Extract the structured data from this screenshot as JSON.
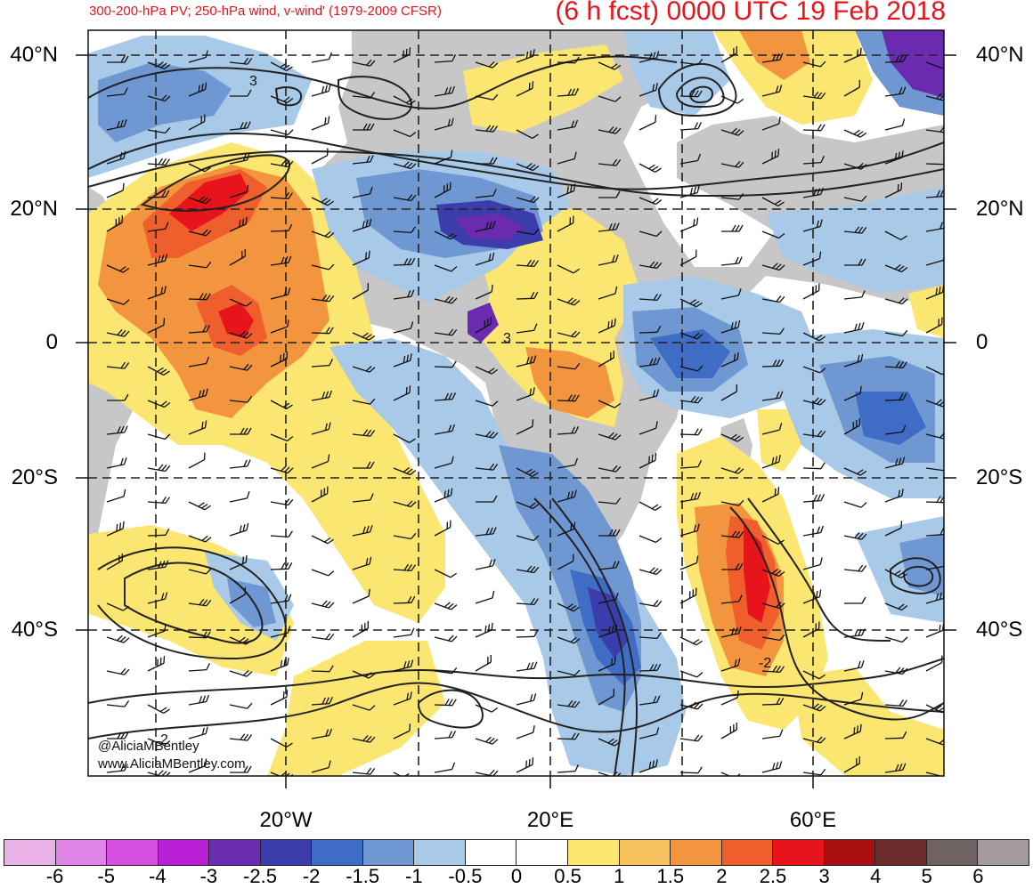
{
  "header": {
    "subtitle": "300-200-hPa PV; 250-hPa wind, v-wind' (1979-2009 CFSR)",
    "title": "(6 h fcst) 0000 UTC 19 Feb 2018"
  },
  "lat_labels": [
    "40°N",
    "20°N",
    "0",
    "20°S",
    "40°S"
  ],
  "lon_labels": [
    "20°W",
    "20°E",
    "60°E"
  ],
  "contour_labels": [
    "3",
    "3",
    "2",
    "-2"
  ],
  "credits": {
    "handle": "@AliciaMBentley",
    "website": "www.AliciaMBentley.com"
  },
  "colorbar": {
    "tick_labels": [
      "-6",
      "-5",
      "-4",
      "-3",
      "-2.5",
      "-2",
      "-1.5",
      "-1",
      "-0.5",
      "0",
      "0.5",
      "1",
      "1.5",
      "2",
      "2.5",
      "3",
      "4",
      "5",
      "6"
    ],
    "colors": [
      "#e7b3e7",
      "#e083e6",
      "#d54fe0",
      "#b81fd4",
      "#6a2bb0",
      "#3b3dad",
      "#3f6cc4",
      "#6f97d2",
      "#a8c9e8",
      "#ffffff",
      "#ffffff",
      "#fbe672",
      "#f5c25e",
      "#f3943f",
      "#ef5f2e",
      "#e8141b",
      "#a70e10",
      "#6b2b2b",
      "#6e6262",
      "#a39b9b"
    ]
  },
  "map_colors": {
    "land": "#c7c7c7",
    "contour": "#222222",
    "grid": "#222222"
  }
}
